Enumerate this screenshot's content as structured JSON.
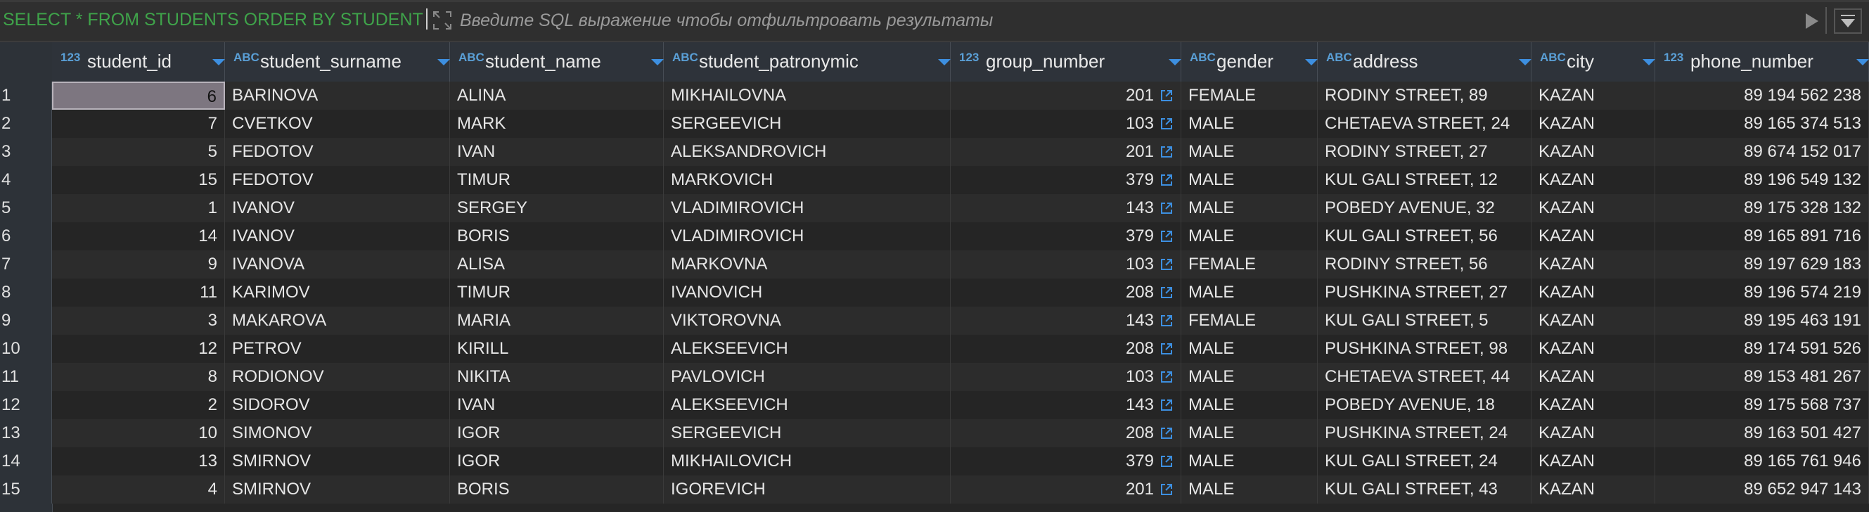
{
  "filter_bar": {
    "query_text": "SELECT * FROM STUDENTS ORDER BY STUDENT",
    "filter_placeholder": "Введите SQL выражение чтобы отфильтровать результаты"
  },
  "columns": [
    {
      "key": "student_id",
      "type": "123",
      "name": "student_id"
    },
    {
      "key": "student_surname",
      "type": "ABC",
      "name": "student_surname"
    },
    {
      "key": "student_name",
      "type": "ABC",
      "name": "student_name"
    },
    {
      "key": "student_patronymic",
      "type": "ABC",
      "name": "student_patronymic"
    },
    {
      "key": "group_number",
      "type": "123",
      "name": "group_number"
    },
    {
      "key": "gender",
      "type": "ABC",
      "name": "gender"
    },
    {
      "key": "address",
      "type": "ABC",
      "name": "address"
    },
    {
      "key": "city",
      "type": "ABC",
      "name": "city"
    },
    {
      "key": "phone_number",
      "type": "123",
      "name": "phone_number"
    }
  ],
  "rows": [
    {
      "n": "1",
      "student_id": "6",
      "student_surname": "BARINOVA",
      "student_name": "ALINA",
      "student_patronymic": "MIKHAILOVNA",
      "group_number": "201",
      "gender": "FEMALE",
      "address": "RODINY STREET, 89",
      "city": "KAZAN",
      "phone_number": "89 194 562 238"
    },
    {
      "n": "2",
      "student_id": "7",
      "student_surname": "CVETKOV",
      "student_name": "MARK",
      "student_patronymic": "SERGEEVICH",
      "group_number": "103",
      "gender": "MALE",
      "address": "CHETAEVA STREET, 24",
      "city": "KAZAN",
      "phone_number": "89 165 374 513"
    },
    {
      "n": "3",
      "student_id": "5",
      "student_surname": "FEDOTOV",
      "student_name": "IVAN",
      "student_patronymic": "ALEKSANDROVICH",
      "group_number": "201",
      "gender": "MALE",
      "address": "RODINY STREET, 27",
      "city": "KAZAN",
      "phone_number": "89 674 152 017"
    },
    {
      "n": "4",
      "student_id": "15",
      "student_surname": "FEDOTOV",
      "student_name": "TIMUR",
      "student_patronymic": "MARKOVICH",
      "group_number": "379",
      "gender": "MALE",
      "address": "KUL GALI STREET, 12",
      "city": "KAZAN",
      "phone_number": "89 196 549 132"
    },
    {
      "n": "5",
      "student_id": "1",
      "student_surname": "IVANOV",
      "student_name": "SERGEY",
      "student_patronymic": "VLADIMIROVICH",
      "group_number": "143",
      "gender": "MALE",
      "address": "POBEDY AVENUE, 32",
      "city": "KAZAN",
      "phone_number": "89 175 328 132"
    },
    {
      "n": "6",
      "student_id": "14",
      "student_surname": "IVANOV",
      "student_name": "BORIS",
      "student_patronymic": "VLADIMIROVICH",
      "group_number": "379",
      "gender": "MALE",
      "address": "KUL GALI STREET, 56",
      "city": "KAZAN",
      "phone_number": "89 165 891 716"
    },
    {
      "n": "7",
      "student_id": "9",
      "student_surname": "IVANOVA",
      "student_name": "ALISA",
      "student_patronymic": "MARKOVNA",
      "group_number": "103",
      "gender": "FEMALE",
      "address": "RODINY STREET, 56",
      "city": "KAZAN",
      "phone_number": "89 197 629 183"
    },
    {
      "n": "8",
      "student_id": "11",
      "student_surname": "KARIMOV",
      "student_name": "TIMUR",
      "student_patronymic": "IVANOVICH",
      "group_number": "208",
      "gender": "MALE",
      "address": "PUSHKINA STREET, 27",
      "city": "KAZAN",
      "phone_number": "89 196 574 219"
    },
    {
      "n": "9",
      "student_id": "3",
      "student_surname": "MAKAROVA",
      "student_name": "MARIA",
      "student_patronymic": "VIKTOROVNA",
      "group_number": "143",
      "gender": "FEMALE",
      "address": "KUL GALI STREET, 5",
      "city": "KAZAN",
      "phone_number": "89 195 463 191"
    },
    {
      "n": "10",
      "student_id": "12",
      "student_surname": "PETROV",
      "student_name": "KIRILL",
      "student_patronymic": "ALEKSEEVICH",
      "group_number": "208",
      "gender": "MALE",
      "address": "PUSHKINA STREET, 98",
      "city": "KAZAN",
      "phone_number": "89 174 591 526"
    },
    {
      "n": "11",
      "student_id": "8",
      "student_surname": "RODIONOV",
      "student_name": "NIKITA",
      "student_patronymic": "PAVLOVICH",
      "group_number": "103",
      "gender": "MALE",
      "address": "CHETAEVA STREET, 44",
      "city": "KAZAN",
      "phone_number": "89 153 481 267"
    },
    {
      "n": "12",
      "student_id": "2",
      "student_surname": "SIDOROV",
      "student_name": "IVAN",
      "student_patronymic": "ALEKSEEVICH",
      "group_number": "143",
      "gender": "MALE",
      "address": "POBEDY AVENUE, 18",
      "city": "KAZAN",
      "phone_number": "89 175 568 737"
    },
    {
      "n": "13",
      "student_id": "10",
      "student_surname": "SIMONOV",
      "student_name": "IGOR",
      "student_patronymic": "SERGEEVICH",
      "group_number": "208",
      "gender": "MALE",
      "address": "PUSHKINA STREET, 24",
      "city": "KAZAN",
      "phone_number": "89 163 501 427"
    },
    {
      "n": "14",
      "student_id": "13",
      "student_surname": "SMIRNOV",
      "student_name": "IGOR",
      "student_patronymic": "MIKHAILOVICH",
      "group_number": "379",
      "gender": "MALE",
      "address": "KUL GALI STREET, 24",
      "city": "KAZAN",
      "phone_number": "89 165 761 946"
    },
    {
      "n": "15",
      "student_id": "4",
      "student_surname": "SMIRNOV",
      "student_name": "BORIS",
      "student_patronymic": "IGOREVICH",
      "group_number": "201",
      "gender": "MALE",
      "address": "KUL GALI STREET, 43",
      "city": "KAZAN",
      "phone_number": "89 652 947 143"
    }
  ],
  "icons": {
    "expand": "expand-icon",
    "run": "play-icon",
    "history": "history-dropdown-icon",
    "link": "external-link-icon",
    "sort": "sort-arrow-icon"
  },
  "colors": {
    "query": "#3fa34a",
    "type_badge": "#5a9fd6",
    "sort_arrow": "#3d8fe0",
    "link_icon": "#3d8fe0",
    "selected_cell": "#7d7680"
  }
}
